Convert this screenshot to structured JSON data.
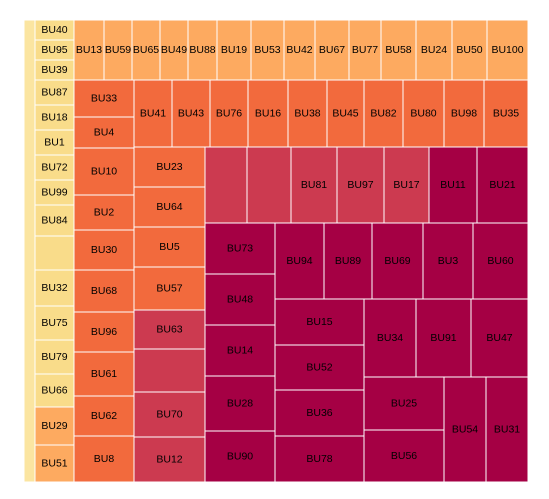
{
  "chart_data": {
    "type": "treemap",
    "title": "",
    "colors": {
      "lightest": "#fbe5a1",
      "light_yellow": "#f9dc8a",
      "orange_light": "#fdaa60",
      "orange": "#f26a3d",
      "red": "#cc3a50",
      "deep_red": "#a50044"
    },
    "cells": [
      {
        "label": "",
        "color": "#fbe5a1"
      },
      {
        "label": "BU40",
        "color": "#f9dc8a"
      },
      {
        "label": "BU95",
        "color": "#f9dc8a"
      },
      {
        "label": "BU39",
        "color": "#f9dc8a"
      },
      {
        "label": "BU87",
        "color": "#f9dc8a"
      },
      {
        "label": "BU18",
        "color": "#f9dc8a"
      },
      {
        "label": "BU1",
        "color": "#f9dc8a"
      },
      {
        "label": "BU72",
        "color": "#f9dc8a"
      },
      {
        "label": "BU99",
        "color": "#f9dc8a"
      },
      {
        "label": "BU84",
        "color": "#f9dc8a"
      },
      {
        "label": "",
        "color": "#f9dc8a"
      },
      {
        "label": "BU32",
        "color": "#f9dc8a"
      },
      {
        "label": "BU75",
        "color": "#f9dc8a"
      },
      {
        "label": "BU79",
        "color": "#f9dc8a"
      },
      {
        "label": "BU66",
        "color": "#f9dc8a"
      },
      {
        "label": "BU29",
        "color": "#fdaa60"
      },
      {
        "label": "BU51",
        "color": "#fdaa60"
      },
      {
        "label": "BU13",
        "color": "#fdaa60"
      },
      {
        "label": "BU59",
        "color": "#fdaa60"
      },
      {
        "label": "BU65",
        "color": "#fdaa60"
      },
      {
        "label": "BU49",
        "color": "#fdaa60"
      },
      {
        "label": "BU88",
        "color": "#fdaa60"
      },
      {
        "label": "BU19",
        "color": "#fdaa60"
      },
      {
        "label": "BU53",
        "color": "#fdaa60"
      },
      {
        "label": "BU42",
        "color": "#fdaa60"
      },
      {
        "label": "BU67",
        "color": "#fdaa60"
      },
      {
        "label": "BU77",
        "color": "#fdaa60"
      },
      {
        "label": "BU58",
        "color": "#fdaa60"
      },
      {
        "label": "BU24",
        "color": "#fdaa60"
      },
      {
        "label": "BU50",
        "color": "#fdaa60"
      },
      {
        "label": "BU100",
        "color": "#fdaa60"
      },
      {
        "label": "BU33",
        "color": "#f26a3d"
      },
      {
        "label": "BU4",
        "color": "#f26a3d"
      },
      {
        "label": "BU10",
        "color": "#f26a3d"
      },
      {
        "label": "BU2",
        "color": "#f26a3d"
      },
      {
        "label": "BU30",
        "color": "#f26a3d"
      },
      {
        "label": "BU68",
        "color": "#f26a3d"
      },
      {
        "label": "BU96",
        "color": "#f26a3d"
      },
      {
        "label": "BU61",
        "color": "#f26a3d"
      },
      {
        "label": "BU62",
        "color": "#f26a3d"
      },
      {
        "label": "BU8",
        "color": "#f26a3d"
      },
      {
        "label": "BU41",
        "color": "#f26a3d"
      },
      {
        "label": "BU43",
        "color": "#f26a3d"
      },
      {
        "label": "BU76",
        "color": "#f26a3d"
      },
      {
        "label": "BU16",
        "color": "#f26a3d"
      },
      {
        "label": "BU38",
        "color": "#f26a3d"
      },
      {
        "label": "BU45",
        "color": "#f26a3d"
      },
      {
        "label": "BU82",
        "color": "#f26a3d"
      },
      {
        "label": "BU80",
        "color": "#f26a3d"
      },
      {
        "label": "BU98",
        "color": "#f26a3d"
      },
      {
        "label": "BU35",
        "color": "#f26a3d"
      },
      {
        "label": "BU23",
        "color": "#f26a3d"
      },
      {
        "label": "BU64",
        "color": "#f26a3d"
      },
      {
        "label": "BU5",
        "color": "#f26a3d"
      },
      {
        "label": "BU57",
        "color": "#f26a3d"
      },
      {
        "label": "BU63",
        "color": "#cc3a50"
      },
      {
        "label": "",
        "color": "#cc3a50"
      },
      {
        "label": "BU70",
        "color": "#cc3a50"
      },
      {
        "label": "BU12",
        "color": "#cc3a50"
      },
      {
        "label": "",
        "color": "#cc3a50"
      },
      {
        "label": "",
        "color": "#cc3a50"
      },
      {
        "label": "BU81",
        "color": "#cc3a50"
      },
      {
        "label": "BU97",
        "color": "#cc3a50"
      },
      {
        "label": "BU17",
        "color": "#cc3a50"
      },
      {
        "label": "BU11",
        "color": "#a50044"
      },
      {
        "label": "BU21",
        "color": "#a50044"
      },
      {
        "label": "BU73",
        "color": "#a50044"
      },
      {
        "label": "BU94",
        "color": "#a50044"
      },
      {
        "label": "BU89",
        "color": "#a50044"
      },
      {
        "label": "BU69",
        "color": "#a50044"
      },
      {
        "label": "BU3",
        "color": "#a50044"
      },
      {
        "label": "BU60",
        "color": "#a50044"
      },
      {
        "label": "BU48",
        "color": "#a50044"
      },
      {
        "label": "BU14",
        "color": "#a50044"
      },
      {
        "label": "BU15",
        "color": "#a50044"
      },
      {
        "label": "BU52",
        "color": "#a50044"
      },
      {
        "label": "BU34",
        "color": "#a50044"
      },
      {
        "label": "BU91",
        "color": "#a50044"
      },
      {
        "label": "BU47",
        "color": "#a50044"
      },
      {
        "label": "BU28",
        "color": "#a50044"
      },
      {
        "label": "BU36",
        "color": "#a50044"
      },
      {
        "label": "BU25",
        "color": "#a50044"
      },
      {
        "label": "BU54",
        "color": "#a50044"
      },
      {
        "label": "BU31",
        "color": "#a50044"
      },
      {
        "label": "BU90",
        "color": "#a50044"
      },
      {
        "label": "BU78",
        "color": "#a50044"
      },
      {
        "label": "BU56",
        "color": "#a50044"
      }
    ]
  }
}
